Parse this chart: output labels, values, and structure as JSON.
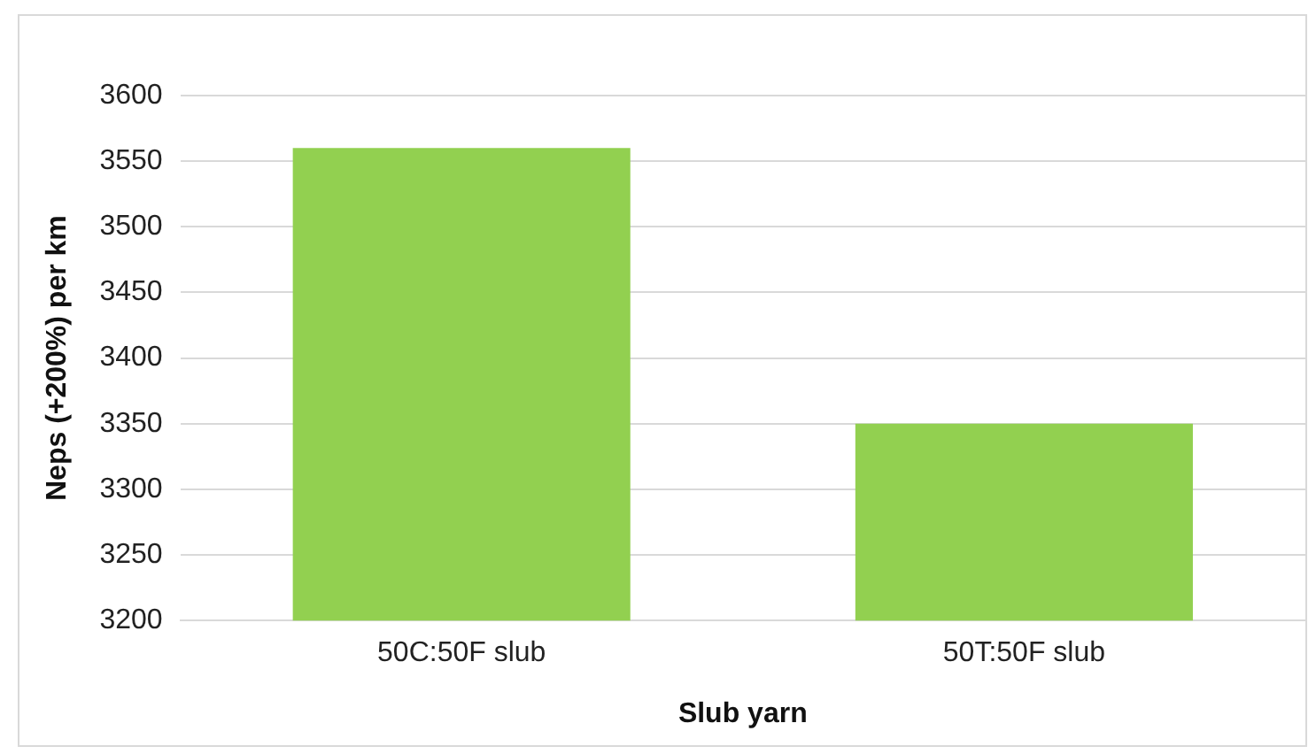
{
  "chart_data": {
    "type": "bar",
    "xlabel": "Slub yarn",
    "ylabel": "Neps (+200%) per km",
    "categories": [
      "50C:50F slub",
      "50T:50F slub"
    ],
    "values": [
      3560,
      3350
    ],
    "color": "#92d050",
    "ylim": [
      3200,
      3600
    ],
    "yticks": [
      3200,
      3250,
      3300,
      3350,
      3400,
      3450,
      3500,
      3550,
      3600
    ],
    "grid": "y",
    "legend": false
  }
}
